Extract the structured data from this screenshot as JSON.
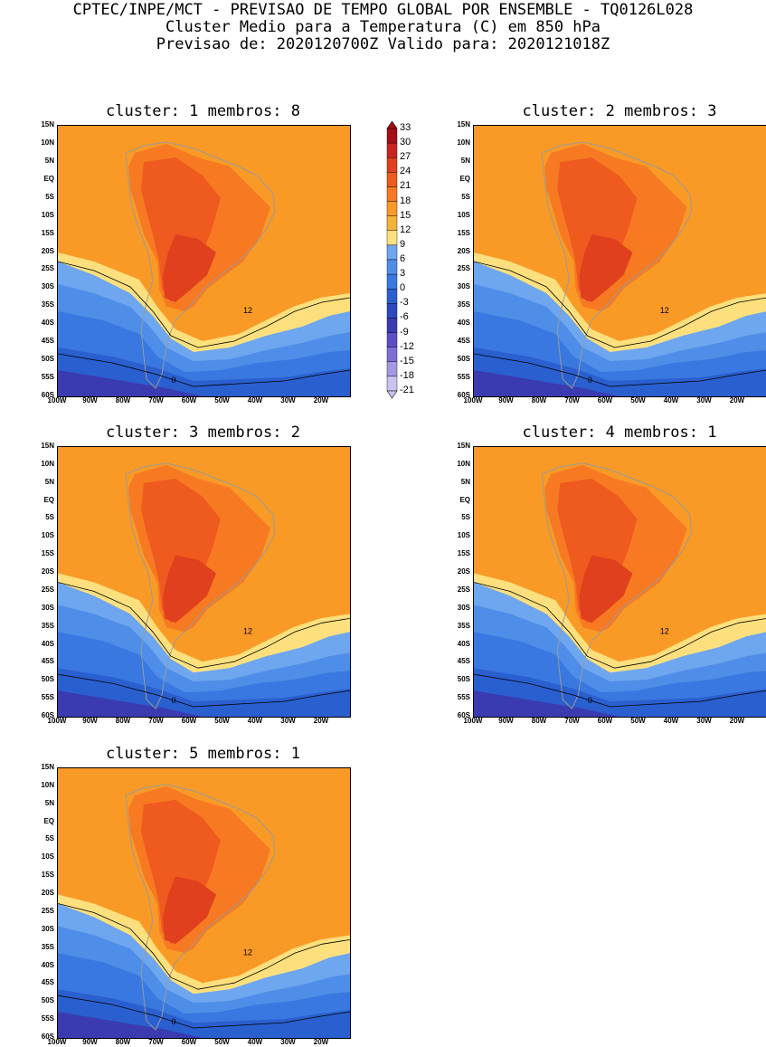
{
  "header": {
    "line1": "CPTEC/INPE/MCT - PREVISAO DE TEMPO GLOBAL POR ENSEMBLE - TQ0126L028",
    "line2": "Cluster Medio para a Temperatura (C) em 850 hPa",
    "line3": "Previsao de: 2020120700Z   Valido para: 2020121018Z"
  },
  "panels": [
    {
      "title": "cluster: 1  membros: 8"
    },
    {
      "title": "cluster: 2  membros: 3"
    },
    {
      "title": "cluster: 3  membros: 2"
    },
    {
      "title": "cluster: 4  membros: 1"
    },
    {
      "title": "cluster: 5  membros: 1"
    }
  ],
  "axes": {
    "y_ticks": [
      "15N",
      "10N",
      "5N",
      "EQ",
      "5S",
      "10S",
      "15S",
      "20S",
      "25S",
      "30S",
      "35S",
      "40S",
      "45S",
      "50S",
      "55S",
      "60S"
    ],
    "x_ticks": [
      "100W",
      "90W",
      "80W",
      "70W",
      "60W",
      "50W",
      "40W",
      "30W",
      "20W"
    ]
  },
  "contour_label_12": "12",
  "contour_label_0": "0",
  "colorbar": {
    "labels": [
      "33",
      "30",
      "27",
      "24",
      "21",
      "18",
      "15",
      "12",
      "9",
      "6",
      "3",
      "0",
      "-3",
      "-6",
      "-9",
      "-12",
      "-15",
      "-18",
      "-21"
    ],
    "colors": [
      "#a50f15",
      "#c8241e",
      "#e0401d",
      "#ef5a1e",
      "#f77a22",
      "#f99a27",
      "#f6b33a",
      "#fde07d",
      "#6ea6ef",
      "#4f8ee8",
      "#3978e0",
      "#2a5fcf",
      "#2b49c0",
      "#3a3bb0",
      "#5b4ec6",
      "#7e6fd6",
      "#a597e2",
      "#cbc2ee"
    ]
  }
}
